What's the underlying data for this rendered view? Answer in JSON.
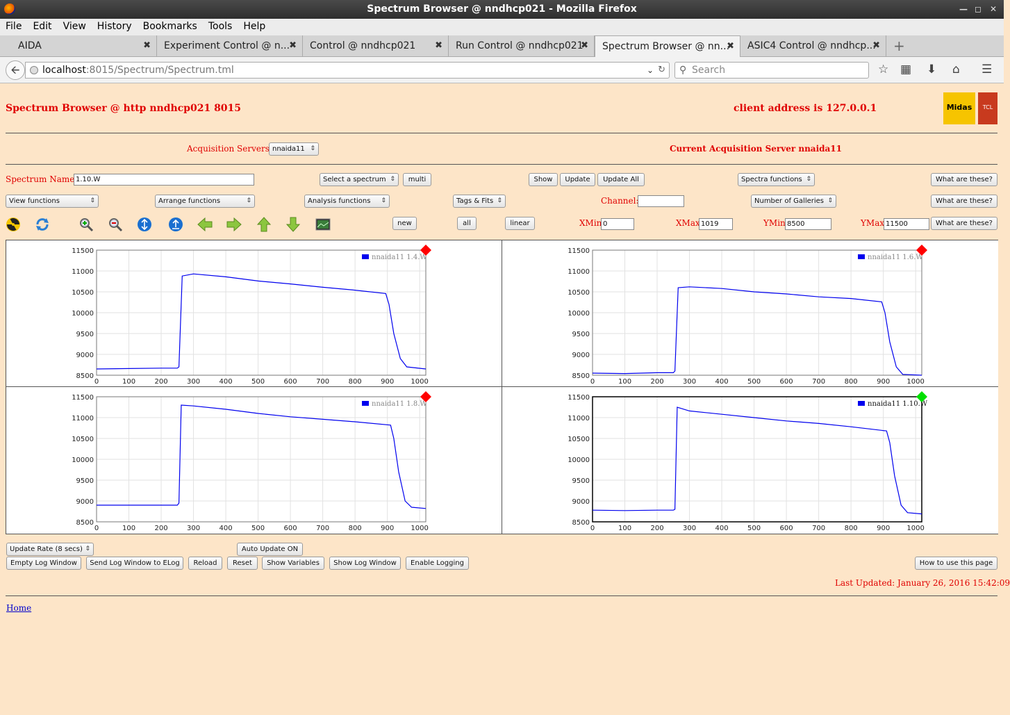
{
  "window": {
    "title": "Spectrum Browser @ nndhcp021 - Mozilla Firefox"
  },
  "menu": [
    "File",
    "Edit",
    "View",
    "History",
    "Bookmarks",
    "Tools",
    "Help"
  ],
  "tabs": [
    {
      "label": "AIDA"
    },
    {
      "label": "Experiment Control @ n..."
    },
    {
      "label": "Control @ nndhcp021"
    },
    {
      "label": "Run Control @ nndhcp021"
    },
    {
      "label": "Spectrum Browser @ nn..."
    },
    {
      "label": "ASIC4 Control @ nndhcp..."
    }
  ],
  "url": {
    "host": "localhost",
    "rest": ":8015/Spectrum/Spectrum.tml"
  },
  "search": {
    "placeholder": "Search"
  },
  "header": {
    "title": "Spectrum Browser @ http nndhcp021 8015",
    "client": "client address is 127.0.0.1",
    "logo1": "Midas",
    "logo2": "TCL"
  },
  "acq": {
    "label": "Acquisition Servers",
    "value": "nnaida11",
    "current": "Current Acquisition Server nnaida11"
  },
  "row1": {
    "spec_label": "Spectrum Name:",
    "spec_value": "1.10.W",
    "select": "Select a spectrum",
    "multi": "multi",
    "show": "Show",
    "update": "Update",
    "update_all": "Update All",
    "spectra_functions": "Spectra functions",
    "what": "What are these?"
  },
  "row2": {
    "view": "View functions",
    "arrange": "Arrange functions",
    "analysis": "Analysis functions",
    "tags": "Tags & Fits",
    "channel_label": "Channel:",
    "channel_value": "",
    "galleries": "Number of Galleries",
    "what": "What are these?"
  },
  "row3": {
    "new": "new",
    "all": "all",
    "linear": "linear",
    "xmin_label": "XMin",
    "xmin": "0",
    "xmax_label": "XMax",
    "xmax": "1019",
    "ymin_label": "YMin",
    "ymin": "8500",
    "ymax_label": "YMax",
    "ymax": "11500",
    "what": "What are these?"
  },
  "toolbar_icons": [
    "radiation-icon",
    "refresh-icon",
    "zoom-in-icon",
    "zoom-out-icon",
    "expand-y-icon",
    "expand-x-icon",
    "left-arrow-icon",
    "right-arrow-icon",
    "up-arrow-icon",
    "down-arrow-icon",
    "screenshot-icon"
  ],
  "chart_data": [
    {
      "type": "line",
      "legend": "nnaida11 1.4.W",
      "xlim": [
        0,
        1019
      ],
      "ylim": [
        8500,
        11500
      ],
      "xticks": [
        0,
        100,
        200,
        300,
        400,
        500,
        600,
        700,
        800,
        900,
        1000
      ],
      "yticks": [
        8500,
        9000,
        9500,
        10000,
        10500,
        11000,
        11500
      ],
      "x": [
        0,
        100,
        200,
        250,
        255,
        265,
        300,
        400,
        500,
        600,
        700,
        800,
        895,
        905,
        920,
        940,
        960,
        1019
      ],
      "y": [
        8650,
        8660,
        8670,
        8670,
        8700,
        10880,
        10930,
        10860,
        10760,
        10690,
        10610,
        10540,
        10460,
        10200,
        9500,
        8900,
        8700,
        8650
      ],
      "marker_color": "#ff0000",
      "selected": false
    },
    {
      "type": "line",
      "legend": "nnaida11 1.6.W",
      "xlim": [
        0,
        1019
      ],
      "ylim": [
        8500,
        11500
      ],
      "xticks": [
        0,
        100,
        200,
        300,
        400,
        500,
        600,
        700,
        800,
        900,
        1000
      ],
      "yticks": [
        8500,
        9000,
        9500,
        10000,
        10500,
        11000,
        11500
      ],
      "x": [
        0,
        100,
        200,
        250,
        255,
        265,
        300,
        400,
        500,
        600,
        700,
        800,
        895,
        905,
        920,
        940,
        960,
        1019
      ],
      "y": [
        8550,
        8540,
        8560,
        8560,
        8600,
        10600,
        10620,
        10580,
        10500,
        10450,
        10380,
        10340,
        10260,
        10000,
        9300,
        8700,
        8520,
        8500
      ],
      "marker_color": "#ff0000",
      "selected": false
    },
    {
      "type": "line",
      "legend": "nnaida11 1.8.W",
      "xlim": [
        0,
        1019
      ],
      "ylim": [
        8500,
        11500
      ],
      "xticks": [
        0,
        100,
        200,
        300,
        400,
        500,
        600,
        700,
        800,
        900,
        1000
      ],
      "yticks": [
        8500,
        9000,
        9500,
        10000,
        10500,
        11000,
        11500
      ],
      "x": [
        0,
        100,
        200,
        250,
        255,
        262,
        300,
        400,
        500,
        600,
        700,
        800,
        910,
        920,
        935,
        955,
        975,
        1019
      ],
      "y": [
        8900,
        8900,
        8900,
        8900,
        8950,
        11300,
        11280,
        11200,
        11100,
        11020,
        10960,
        10900,
        10820,
        10500,
        9700,
        9000,
        8850,
        8820
      ],
      "marker_color": "#ff0000",
      "selected": false
    },
    {
      "type": "line",
      "legend": "nnaida11 1.10.W",
      "xlim": [
        0,
        1019
      ],
      "ylim": [
        8500,
        11500
      ],
      "xticks": [
        0,
        100,
        200,
        300,
        400,
        500,
        600,
        700,
        800,
        900,
        1000
      ],
      "yticks": [
        8500,
        9000,
        9500,
        10000,
        10500,
        11000,
        11500
      ],
      "x": [
        0,
        100,
        200,
        250,
        255,
        262,
        300,
        400,
        500,
        600,
        700,
        800,
        910,
        920,
        935,
        955,
        975,
        1019
      ],
      "y": [
        8780,
        8770,
        8780,
        8780,
        8800,
        11250,
        11160,
        11080,
        11000,
        10920,
        10860,
        10780,
        10680,
        10400,
        9600,
        8900,
        8720,
        8690
      ],
      "marker_color": "#00e000",
      "selected": true
    }
  ],
  "bottom": {
    "rate": "Update Rate (8 secs)",
    "auto": "Auto Update ON",
    "empty": "Empty Log Window",
    "send": "Send Log Window to ELog",
    "reload": "Reload",
    "reset": "Reset",
    "vars": "Show Variables",
    "showlog": "Show Log Window",
    "logging": "Enable Logging",
    "howto": "How to use this page",
    "last": "Last Updated: January 26, 2016 15:42:09",
    "home": "Home"
  }
}
